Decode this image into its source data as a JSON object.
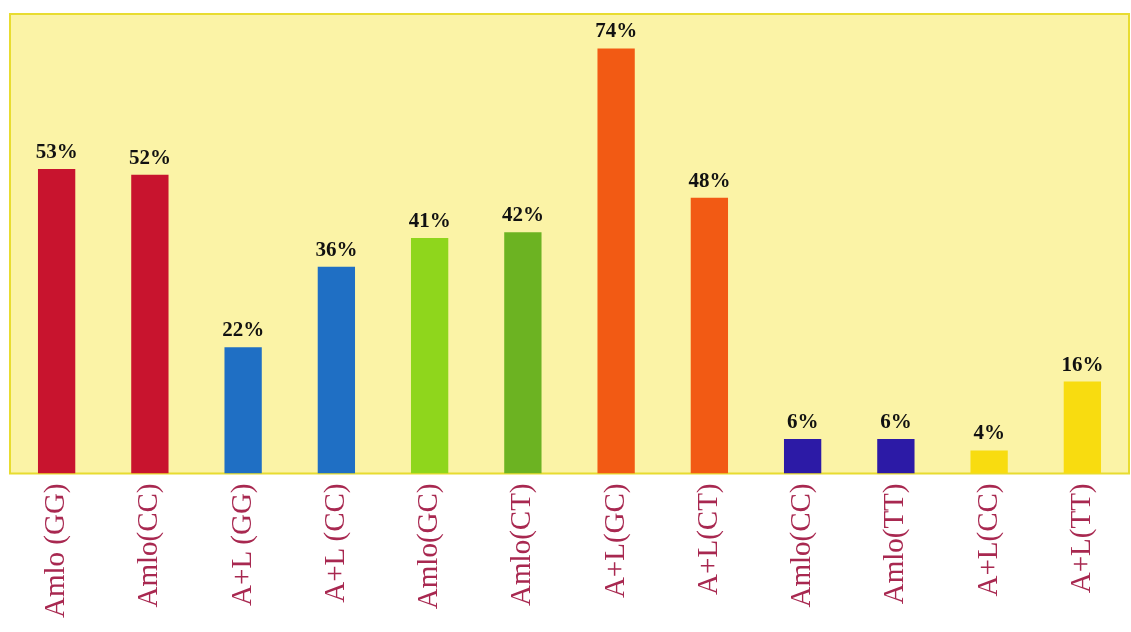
{
  "chart_data": {
    "type": "bar",
    "categories": [
      "Amlo (GG)",
      "Amlo(CC)",
      "A+L (GG)",
      "A+L (CC)",
      "Amlo(GC)",
      "Amlo(CT)",
      "A+L(GC)",
      "A+L(CT)",
      "Amlo(CC)",
      "Amlo(TT)",
      "A+L(CC)",
      "A+L(TT)"
    ],
    "values": [
      53,
      52,
      22,
      36,
      41,
      42,
      74,
      48,
      6,
      6,
      4,
      16
    ],
    "value_labels": [
      "53%",
      "52%",
      "22%",
      "36%",
      "41%",
      "42%",
      "74%",
      "48%",
      "6%",
      "6%",
      "4%",
      "16%"
    ],
    "colors": [
      "#c8142e",
      "#c8142e",
      "#1f6fc4",
      "#1f6fc4",
      "#8fd61c",
      "#6cb322",
      "#f25a14",
      "#f25a14",
      "#2c1aa6",
      "#2c1aa6",
      "#f8dc10",
      "#f8dc10"
    ],
    "grid": false,
    "legend": false
  }
}
